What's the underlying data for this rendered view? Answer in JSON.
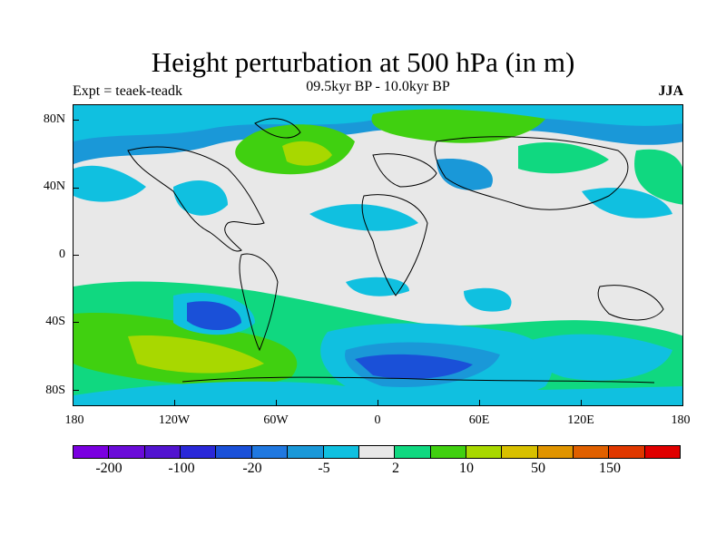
{
  "title": "Height perturbation at 500 hPa (in m)",
  "expt_label": "Expt = teaek-teadk",
  "period_label": "09.5kyr BP - 10.0kyr BP",
  "season_label": "JJA",
  "y_ticks": [
    "80N",
    "40N",
    "0",
    "40S",
    "80S"
  ],
  "x_ticks": [
    "180",
    "120W",
    "60W",
    "0",
    "60E",
    "120E",
    "180"
  ],
  "colorbar": {
    "colors": [
      "#7a00e0",
      "#6a0bd8",
      "#5214d0",
      "#2a28d8",
      "#1a50d8",
      "#2078e0",
      "#1a98d8",
      "#10c0e0",
      "#e8e8e8",
      "#10d880",
      "#40d010",
      "#a8d800",
      "#d8c000",
      "#e09400",
      "#e06000",
      "#e03800",
      "#e00000"
    ],
    "labels": [
      "-200",
      "-100",
      "-20",
      "-5",
      "2",
      "10",
      "50",
      "150"
    ]
  },
  "chart_data": {
    "type": "heatmap",
    "title": "Height perturbation at 500 hPa (in m)",
    "subtitle": "09.5kyr BP - 10.0kyr BP",
    "season": "JJA",
    "xlim": [
      -180,
      180
    ],
    "ylim": [
      -90,
      90
    ],
    "contour_levels": [
      -200,
      -100,
      -20,
      -5,
      2,
      10,
      50,
      150
    ]
  }
}
